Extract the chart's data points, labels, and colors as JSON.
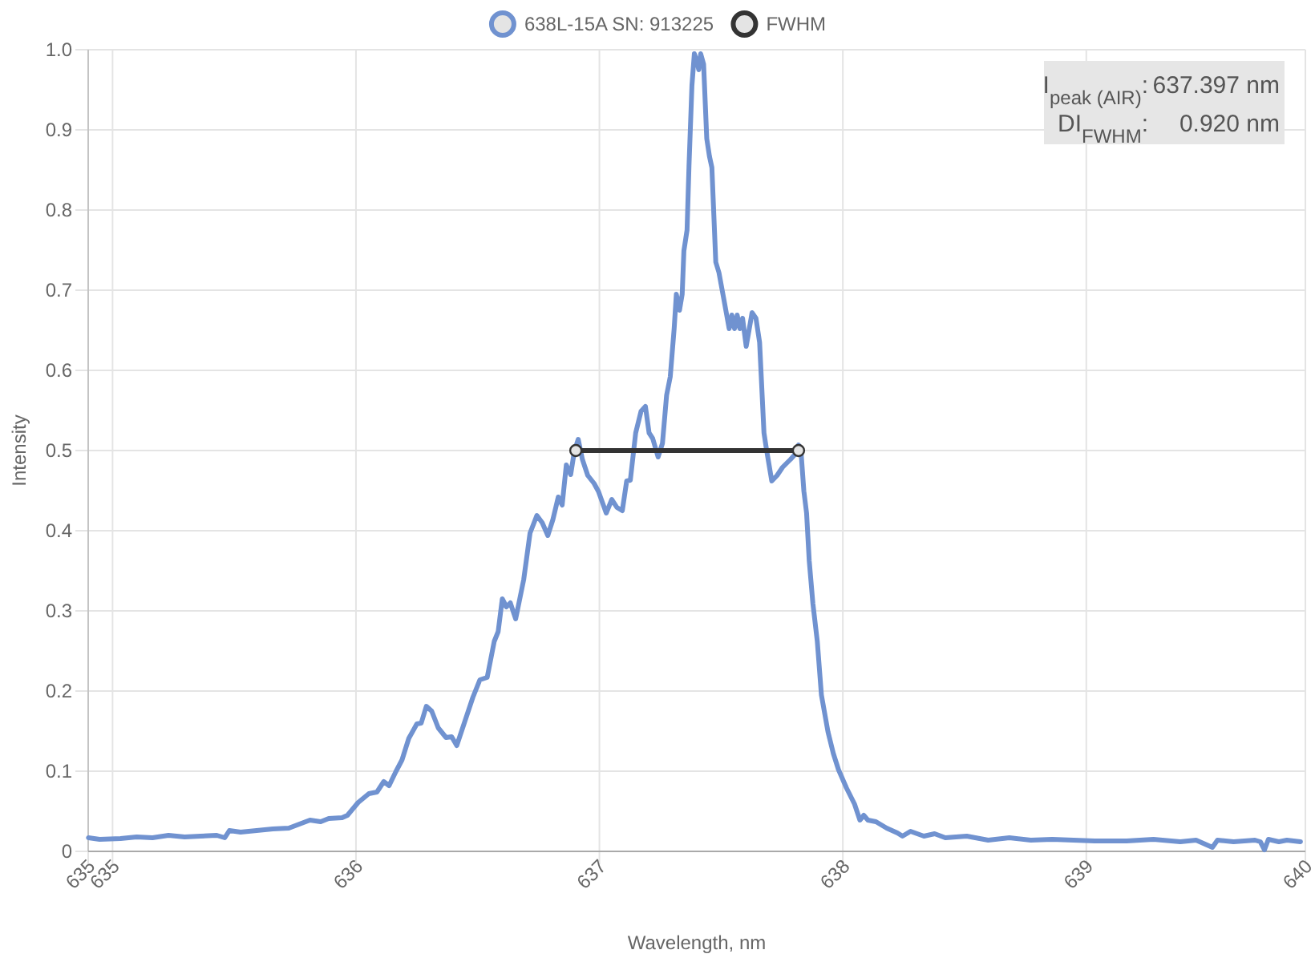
{
  "chart_data": {
    "type": "line",
    "xlabel": "Wavelength, nm",
    "ylabel": "Intensity",
    "xlim": [
      634.9,
      639.9
    ],
    "xticks": [
      {
        "value": 634.9,
        "label": "635"
      },
      635,
      636,
      637,
      638,
      639,
      {
        "value": 639.9,
        "label": "640"
      }
    ],
    "ylim": [
      0,
      1
    ],
    "yticks": [
      0,
      0.1,
      0.2,
      0.3,
      0.4,
      0.5,
      0.6,
      0.7,
      0.8,
      0.9,
      {
        "value": 1,
        "label": "1.0"
      }
    ],
    "grid": true,
    "legend": "top",
    "marker": "none",
    "line_style": "solid",
    "annotations": [
      "I$_{peak (AIR)}$:",
      "637.397 nm",
      "DI$_{FWHM}$:",
      "0.920 nm"
    ],
    "series": [
      {
        "name": "638L-15A SN: 913225",
        "color": "#7092d0",
        "x": [
          634.901,
          634.947,
          635.033,
          635.099,
          635.164,
          635.23,
          635.296,
          635.362,
          635.428,
          635.461,
          635.48,
          635.526,
          635.592,
          635.658,
          635.724,
          635.811,
          635.855,
          635.888,
          635.943,
          635.965,
          636.009,
          636.053,
          636.086,
          636.114,
          636.136,
          636.163,
          636.189,
          636.217,
          636.25,
          636.268,
          636.289,
          636.311,
          636.338,
          636.37,
          636.393,
          636.414,
          636.447,
          636.48,
          636.509,
          636.539,
          636.568,
          636.584,
          636.601,
          636.618,
          636.634,
          636.656,
          636.689,
          636.715,
          636.743,
          636.765,
          636.788,
          636.809,
          636.831,
          636.847,
          636.864,
          636.882,
          636.897,
          636.913,
          636.93,
          636.952,
          636.978,
          636.996,
          637.028,
          637.051,
          637.072,
          637.094,
          637.112,
          637.127,
          637.149,
          637.171,
          637.189,
          637.204,
          637.219,
          637.241,
          637.259,
          637.276,
          637.291,
          637.307,
          637.316,
          637.329,
          637.34,
          637.347,
          637.36,
          637.368,
          637.38,
          637.39,
          637.401,
          637.408,
          637.416,
          637.428,
          637.441,
          637.452,
          637.462,
          637.478,
          637.491,
          637.511,
          637.533,
          637.544,
          637.555,
          637.566,
          637.577,
          637.588,
          637.603,
          637.614,
          637.627,
          637.643,
          637.658,
          637.676,
          637.686,
          637.708,
          637.73,
          637.752,
          637.785,
          637.803,
          637.818,
          637.829,
          637.84,
          637.851,
          637.862,
          637.877,
          637.895,
          637.912,
          637.939,
          637.961,
          637.982,
          638.015,
          638.048,
          638.07,
          638.086,
          638.103,
          638.136,
          638.18,
          638.224,
          638.245,
          638.278,
          638.333,
          638.377,
          638.421,
          638.509,
          638.597,
          638.684,
          638.772,
          638.86,
          638.947,
          639.035,
          639.166,
          639.276,
          639.386,
          639.451,
          639.518,
          639.539,
          639.605,
          639.693,
          639.715,
          639.732,
          639.748,
          639.791,
          639.824,
          639.88
        ],
        "values": [
          0.017,
          0.015,
          0.016,
          0.018,
          0.017,
          0.02,
          0.018,
          0.019,
          0.02,
          0.017,
          0.026,
          0.024,
          0.026,
          0.028,
          0.029,
          0.039,
          0.037,
          0.041,
          0.042,
          0.045,
          0.061,
          0.072,
          0.074,
          0.087,
          0.082,
          0.099,
          0.114,
          0.141,
          0.159,
          0.16,
          0.181,
          0.175,
          0.154,
          0.142,
          0.143,
          0.132,
          0.162,
          0.192,
          0.214,
          0.217,
          0.262,
          0.274,
          0.315,
          0.305,
          0.31,
          0.29,
          0.339,
          0.397,
          0.419,
          0.41,
          0.394,
          0.414,
          0.442,
          0.432,
          0.482,
          0.47,
          0.499,
          0.514,
          0.489,
          0.469,
          0.459,
          0.449,
          0.422,
          0.439,
          0.429,
          0.425,
          0.462,
          0.463,
          0.522,
          0.549,
          0.555,
          0.522,
          0.515,
          0.492,
          0.509,
          0.569,
          0.592,
          0.652,
          0.695,
          0.675,
          0.695,
          0.749,
          0.775,
          0.855,
          0.955,
          0.995,
          0.985,
          0.975,
          0.995,
          0.982,
          0.889,
          0.867,
          0.853,
          0.735,
          0.722,
          0.689,
          0.652,
          0.669,
          0.652,
          0.669,
          0.652,
          0.665,
          0.63,
          0.649,
          0.672,
          0.665,
          0.635,
          0.522,
          0.502,
          0.462,
          0.469,
          0.479,
          0.489,
          0.495,
          0.507,
          0.495,
          0.449,
          0.422,
          0.362,
          0.309,
          0.262,
          0.195,
          0.149,
          0.122,
          0.102,
          0.079,
          0.059,
          0.039,
          0.045,
          0.039,
          0.037,
          0.029,
          0.023,
          0.019,
          0.025,
          0.019,
          0.022,
          0.017,
          0.019,
          0.014,
          0.017,
          0.014,
          0.015,
          0.014,
          0.013,
          0.013,
          0.015,
          0.012,
          0.014,
          0.005,
          0.014,
          0.012,
          0.014,
          0.012,
          0.002,
          0.015,
          0.012,
          0.014,
          0.012
        ]
      },
      {
        "name": "FWHM",
        "color": "#333333",
        "marker": "circle",
        "x": [
          636.903,
          637.818
        ],
        "values": [
          0.5,
          0.5
        ]
      }
    ]
  }
}
